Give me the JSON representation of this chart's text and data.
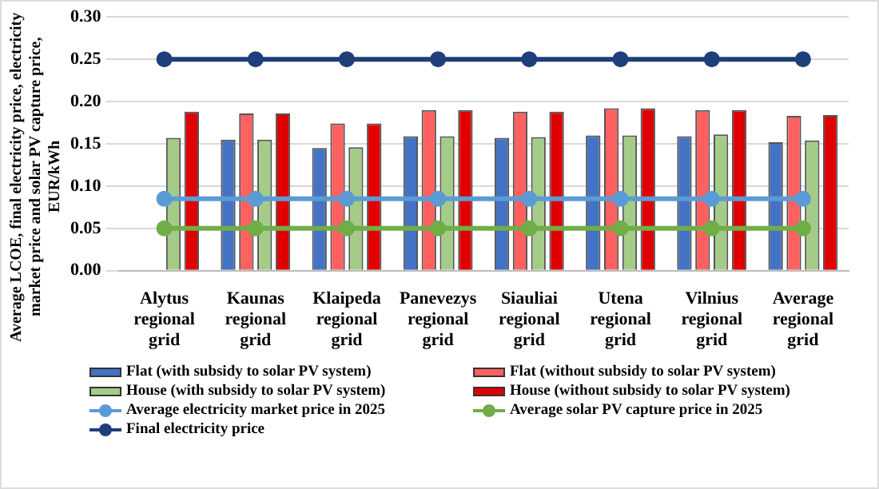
{
  "chart_data": {
    "type": "bar",
    "ylabel": "Average LCOE, final electricity price, electricity market price and solar PV capture price, EUR/kWh",
    "categories": [
      "Alytus regional grid",
      "Kaunas regional grid",
      "Klaipeda regional grid",
      "Panevezys regional grid",
      "Siauliai regional grid",
      "Utena regional grid",
      "Vilnius regional grid",
      "Average regional grid"
    ],
    "series": [
      {
        "name": "Flat (with subsidy to solar PV system)",
        "color": "#4472c4",
        "values": [
          null,
          0.155,
          0.145,
          0.159,
          0.157,
          0.16,
          0.159,
          0.152
        ]
      },
      {
        "name": "Flat (without subsidy to solar PV system)",
        "color": "#ff6060",
        "values": [
          null,
          0.186,
          0.174,
          0.19,
          0.188,
          0.192,
          0.19,
          0.183
        ]
      },
      {
        "name": "House (with subsidy to solar PV system)",
        "color": "#a4cc88",
        "values": [
          0.157,
          0.155,
          0.146,
          0.159,
          0.158,
          0.16,
          0.161,
          0.154
        ]
      },
      {
        "name": "House (without subsidy to solar PV system)",
        "color": "#e00000",
        "values": [
          0.188,
          0.186,
          0.174,
          0.19,
          0.188,
          0.192,
          0.19,
          0.184
        ]
      },
      {
        "name": "Average electricity market price in 2025",
        "type": "line",
        "color": "#5b9bd5",
        "values": [
          0.085,
          0.085,
          0.085,
          0.085,
          0.085,
          0.085,
          0.085,
          0.085
        ]
      },
      {
        "name": "Average solar PV capture price in 2025",
        "type": "line",
        "color": "#70ad47",
        "values": [
          0.05,
          0.05,
          0.05,
          0.05,
          0.05,
          0.05,
          0.05,
          0.05
        ]
      },
      {
        "name": "Final electricity price",
        "type": "line",
        "color": "#1f3f7a",
        "values": [
          0.25,
          0.25,
          0.25,
          0.25,
          0.25,
          0.25,
          0.25,
          0.25
        ]
      }
    ],
    "ylim": [
      0,
      0.3
    ],
    "yticks": [
      {
        "value": 0,
        "label": "0.00"
      },
      {
        "value": 0.05,
        "label": "0.05"
      },
      {
        "value": 0.1,
        "label": "0.10"
      },
      {
        "value": 0.15,
        "label": "0.15"
      },
      {
        "value": 0.2,
        "label": "0.20"
      },
      {
        "value": 0.25,
        "label": "0.25"
      },
      {
        "value": 0.3,
        "label": "0.30"
      }
    ],
    "grid": "y",
    "legend": "bottom",
    "marker": "circle",
    "line_style": "solid"
  }
}
